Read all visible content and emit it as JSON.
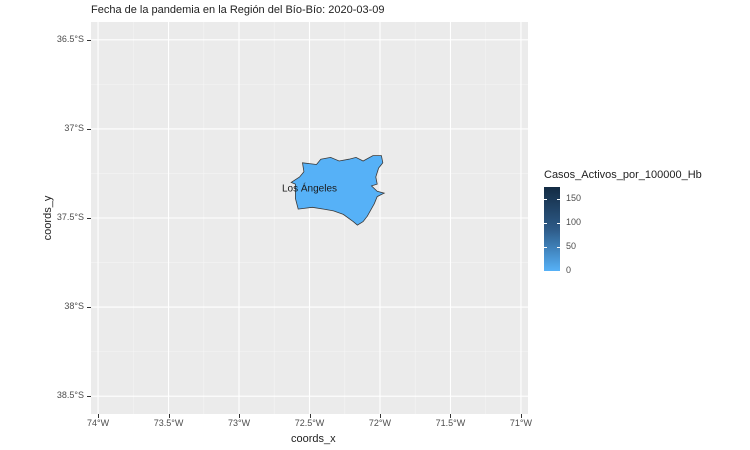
{
  "title": "Fecha de la pandemia en la Región del Bío-Bío: 2020-03-09",
  "map": {
    "xlabel": "coords_x",
    "ylabel": "coords_y",
    "x_ticks": [
      "74°W",
      "73.5°W",
      "73°W",
      "72.5°W",
      "72°W",
      "71.5°W",
      "71°W"
    ],
    "y_ticks": [
      "36.5°S",
      "37°S",
      "37.5°S",
      "38°S",
      "38.5°S"
    ],
    "x_range": [
      -74.05,
      -70.95
    ],
    "y_range": [
      -38.6,
      -36.4
    ],
    "region": {
      "name": "Los Ángeles",
      "value": 0,
      "fill": "#56b1f7",
      "outline": [
        [
          -72.55,
          -37.19
        ],
        [
          -72.45,
          -37.2
        ],
        [
          -72.42,
          -37.17
        ],
        [
          -72.35,
          -37.16
        ],
        [
          -72.29,
          -37.18
        ],
        [
          -72.22,
          -37.17
        ],
        [
          -72.17,
          -37.16
        ],
        [
          -72.12,
          -37.18
        ],
        [
          -72.05,
          -37.15
        ],
        [
          -71.99,
          -37.15
        ],
        [
          -71.98,
          -37.19
        ],
        [
          -72.01,
          -37.22
        ],
        [
          -72.03,
          -37.27
        ],
        [
          -72.02,
          -37.31
        ],
        [
          -72.06,
          -37.32
        ],
        [
          -72.02,
          -37.35
        ],
        [
          -71.97,
          -37.36
        ],
        [
          -72.02,
          -37.38
        ],
        [
          -72.04,
          -37.42
        ],
        [
          -72.09,
          -37.49
        ],
        [
          -72.12,
          -37.52
        ],
        [
          -72.16,
          -37.54
        ],
        [
          -72.19,
          -37.52
        ],
        [
          -72.26,
          -37.48
        ],
        [
          -72.33,
          -37.46
        ],
        [
          -72.4,
          -37.45
        ],
        [
          -72.48,
          -37.44
        ],
        [
          -72.58,
          -37.45
        ],
        [
          -72.6,
          -37.39
        ],
        [
          -72.6,
          -37.31
        ],
        [
          -72.63,
          -37.3
        ],
        [
          -72.57,
          -37.27
        ],
        [
          -72.54,
          -37.24
        ]
      ]
    },
    "background": "#ebebeb",
    "grid_color": "#ffffff"
  },
  "legend": {
    "title": "Casos_Activos_por_100000_Hb",
    "breaks": [
      "0",
      "50",
      "100",
      "150"
    ],
    "range": [
      0,
      175
    ],
    "low_color": "#56b1f7",
    "high_color": "#132b43"
  }
}
